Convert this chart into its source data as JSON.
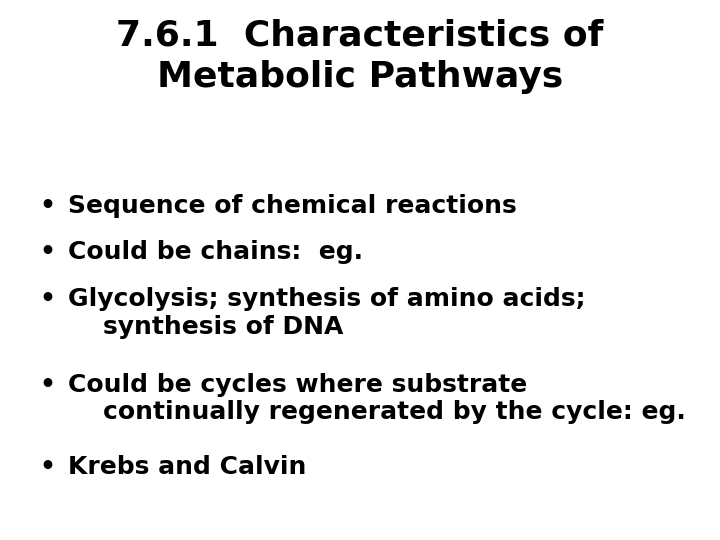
{
  "title_line1": "7.6.1  Characteristics of",
  "title_line2": "Metabolic Pathways",
  "bullet_lines": [
    [
      "Sequence of chemical reactions"
    ],
    [
      "Could be chains:  eg."
    ],
    [
      "Glycolysis; synthesis of amino acids;",
      "    synthesis of DNA"
    ],
    [
      "Could be cycles where substrate",
      "    continually regenerated by the cycle: eg."
    ],
    [
      "Krebs and Calvin"
    ]
  ],
  "background_color": "#ffffff",
  "text_color": "#000000",
  "title_fontsize": 26,
  "bullet_fontsize": 18,
  "font_family": "DejaVu Sans"
}
